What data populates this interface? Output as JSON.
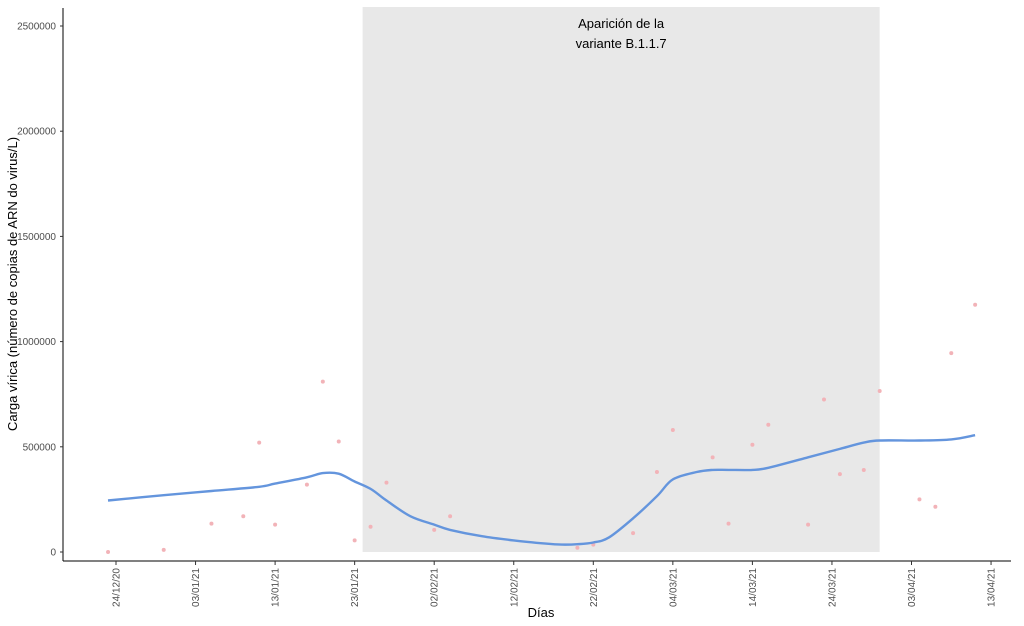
{
  "chart_data": {
    "type": "scatter",
    "title": "",
    "xlabel": "Días",
    "ylabel": "Carga vírica (número de copias de ARN do virus/L)",
    "ylim": [
      0,
      2600000
    ],
    "xlim": [
      "2020-12-18",
      "2021-04-16"
    ],
    "grid": false,
    "legend": "none",
    "y_ticks": [
      {
        "value": 0,
        "label": "0"
      },
      {
        "value": 500000,
        "label": "500000"
      },
      {
        "value": 1000000,
        "label": "1000000"
      },
      {
        "value": 1500000,
        "label": "1500000"
      },
      {
        "value": 2000000,
        "label": "2000000"
      },
      {
        "value": 2500000,
        "label": "2500000"
      }
    ],
    "x_ticks": [
      {
        "date": "2020-12-24",
        "label": "24/12/20"
      },
      {
        "date": "2021-01-03",
        "label": "03/01/21"
      },
      {
        "date": "2021-01-13",
        "label": "13/01/21"
      },
      {
        "date": "2021-01-23",
        "label": "23/01/21"
      },
      {
        "date": "2021-02-02",
        "label": "02/02/21"
      },
      {
        "date": "2021-02-12",
        "label": "12/02/21"
      },
      {
        "date": "2021-02-22",
        "label": "22/02/21"
      },
      {
        "date": "2021-03-04",
        "label": "04/03/21"
      },
      {
        "date": "2021-03-14",
        "label": "14/03/21"
      },
      {
        "date": "2021-03-24",
        "label": "24/03/21"
      },
      {
        "date": "2021-04-03",
        "label": "03/04/21"
      },
      {
        "date": "2021-04-13",
        "label": "13/04/21"
      }
    ],
    "shaded_region": {
      "start": "2021-01-24",
      "end": "2021-03-30",
      "color": "#e8e8e8"
    },
    "annotation": {
      "lines": [
        "Aparición de la",
        "variante B.1.1.7"
      ]
    },
    "points_color": "#f2b3b8",
    "points": [
      {
        "x": "2020-12-23",
        "y": 0
      },
      {
        "x": "2020-12-30",
        "y": 10000
      },
      {
        "x": "2021-01-05",
        "y": 135000
      },
      {
        "x": "2021-01-09",
        "y": 170000
      },
      {
        "x": "2021-01-11",
        "y": 520000
      },
      {
        "x": "2021-01-13",
        "y": 130000
      },
      {
        "x": "2021-01-17",
        "y": 320000
      },
      {
        "x": "2021-01-19",
        "y": 810000
      },
      {
        "x": "2021-01-21",
        "y": 525000
      },
      {
        "x": "2021-01-23",
        "y": 55000
      },
      {
        "x": "2021-01-25",
        "y": 120000
      },
      {
        "x": "2021-01-27",
        "y": 330000
      },
      {
        "x": "2021-02-02",
        "y": 105000
      },
      {
        "x": "2021-02-04",
        "y": 170000
      },
      {
        "x": "2021-02-20",
        "y": 20000
      },
      {
        "x": "2021-02-22",
        "y": 35000
      },
      {
        "x": "2021-02-27",
        "y": 90000
      },
      {
        "x": "2021-03-02",
        "y": 380000
      },
      {
        "x": "2021-03-04",
        "y": 580000
      },
      {
        "x": "2021-03-09",
        "y": 450000
      },
      {
        "x": "2021-03-11",
        "y": 135000
      },
      {
        "x": "2021-03-14",
        "y": 510000
      },
      {
        "x": "2021-03-16",
        "y": 605000
      },
      {
        "x": "2021-03-21",
        "y": 130000
      },
      {
        "x": "2021-03-23",
        "y": 725000
      },
      {
        "x": "2021-03-25",
        "y": 370000
      },
      {
        "x": "2021-03-28",
        "y": 390000
      },
      {
        "x": "2021-03-30",
        "y": 765000
      },
      {
        "x": "2021-04-04",
        "y": 250000
      },
      {
        "x": "2021-04-06",
        "y": 215000
      },
      {
        "x": "2021-04-08",
        "y": 945000
      },
      {
        "x": "2021-04-11",
        "y": 1175000
      }
    ],
    "series": [
      {
        "color": "#6495dd",
        "x": [
          "2020-12-23",
          "2020-12-30",
          "2021-01-05",
          "2021-01-11",
          "2021-01-13",
          "2021-01-17",
          "2021-01-19",
          "2021-01-21",
          "2021-01-23",
          "2021-01-25",
          "2021-01-27",
          "2021-01-30",
          "2021-02-02",
          "2021-02-04",
          "2021-02-08",
          "2021-02-12",
          "2021-02-16",
          "2021-02-18",
          "2021-02-20",
          "2021-02-22",
          "2021-02-24",
          "2021-02-27",
          "2021-03-02",
          "2021-03-04",
          "2021-03-07",
          "2021-03-09",
          "2021-03-11",
          "2021-03-14",
          "2021-03-16",
          "2021-03-21",
          "2021-03-25",
          "2021-03-28",
          "2021-03-30",
          "2021-04-04",
          "2021-04-08",
          "2021-04-11"
        ],
        "values": [
          245000,
          270000,
          290000,
          310000,
          325000,
          355000,
          375000,
          372000,
          335000,
          300000,
          245000,
          170000,
          130000,
          105000,
          75000,
          55000,
          40000,
          35000,
          37000,
          45000,
          70000,
          160000,
          265000,
          345000,
          380000,
          390000,
          390000,
          390000,
          400000,
          450000,
          490000,
          520000,
          530000,
          530000,
          535000,
          555000
        ]
      }
    ]
  }
}
